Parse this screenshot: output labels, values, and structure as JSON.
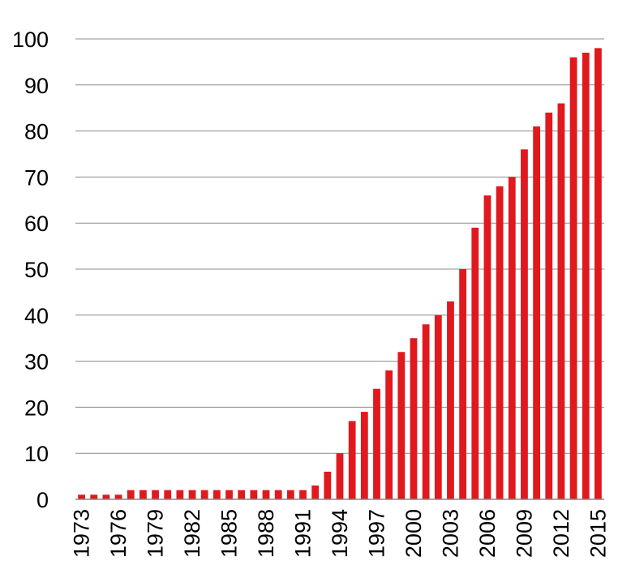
{
  "chart_data": {
    "type": "bar",
    "title": "",
    "xlabel": "",
    "ylabel": "",
    "ylim": [
      0,
      100
    ],
    "yticks": [
      "0",
      "10",
      "20",
      "30",
      "40",
      "50",
      "60",
      "70",
      "80",
      "90",
      "100"
    ],
    "grid": true,
    "legend": "none",
    "bar_color": "#e0191f",
    "categories": [
      "1973",
      "1974",
      "1975",
      "1976",
      "1977",
      "1978",
      "1979",
      "1980",
      "1981",
      "1982",
      "1983",
      "1984",
      "1985",
      "1986",
      "1987",
      "1988",
      "1989",
      "1990",
      "1991",
      "1992",
      "1993",
      "1994",
      "1995",
      "1996",
      "1997",
      "1998",
      "1999",
      "2000",
      "2001",
      "2002",
      "2003",
      "2004",
      "2005",
      "2006",
      "2007",
      "2008",
      "2009",
      "2010",
      "2011",
      "2012",
      "2013",
      "2014",
      "2015"
    ],
    "x_tick_labels": [
      "1973",
      "1976",
      "1979",
      "1982",
      "1985",
      "1988",
      "1991",
      "1994",
      "1997",
      "2000",
      "2003",
      "2006",
      "2009",
      "2012",
      "2015"
    ],
    "values": [
      1,
      1,
      1,
      1,
      2,
      2,
      2,
      2,
      2,
      2,
      2,
      2,
      2,
      2,
      2,
      2,
      2,
      2,
      2,
      3,
      6,
      10,
      17,
      19,
      24,
      28,
      32,
      35,
      38,
      40,
      43,
      50,
      59,
      66,
      68,
      70,
      76,
      81,
      84,
      86,
      96,
      97,
      98
    ]
  }
}
